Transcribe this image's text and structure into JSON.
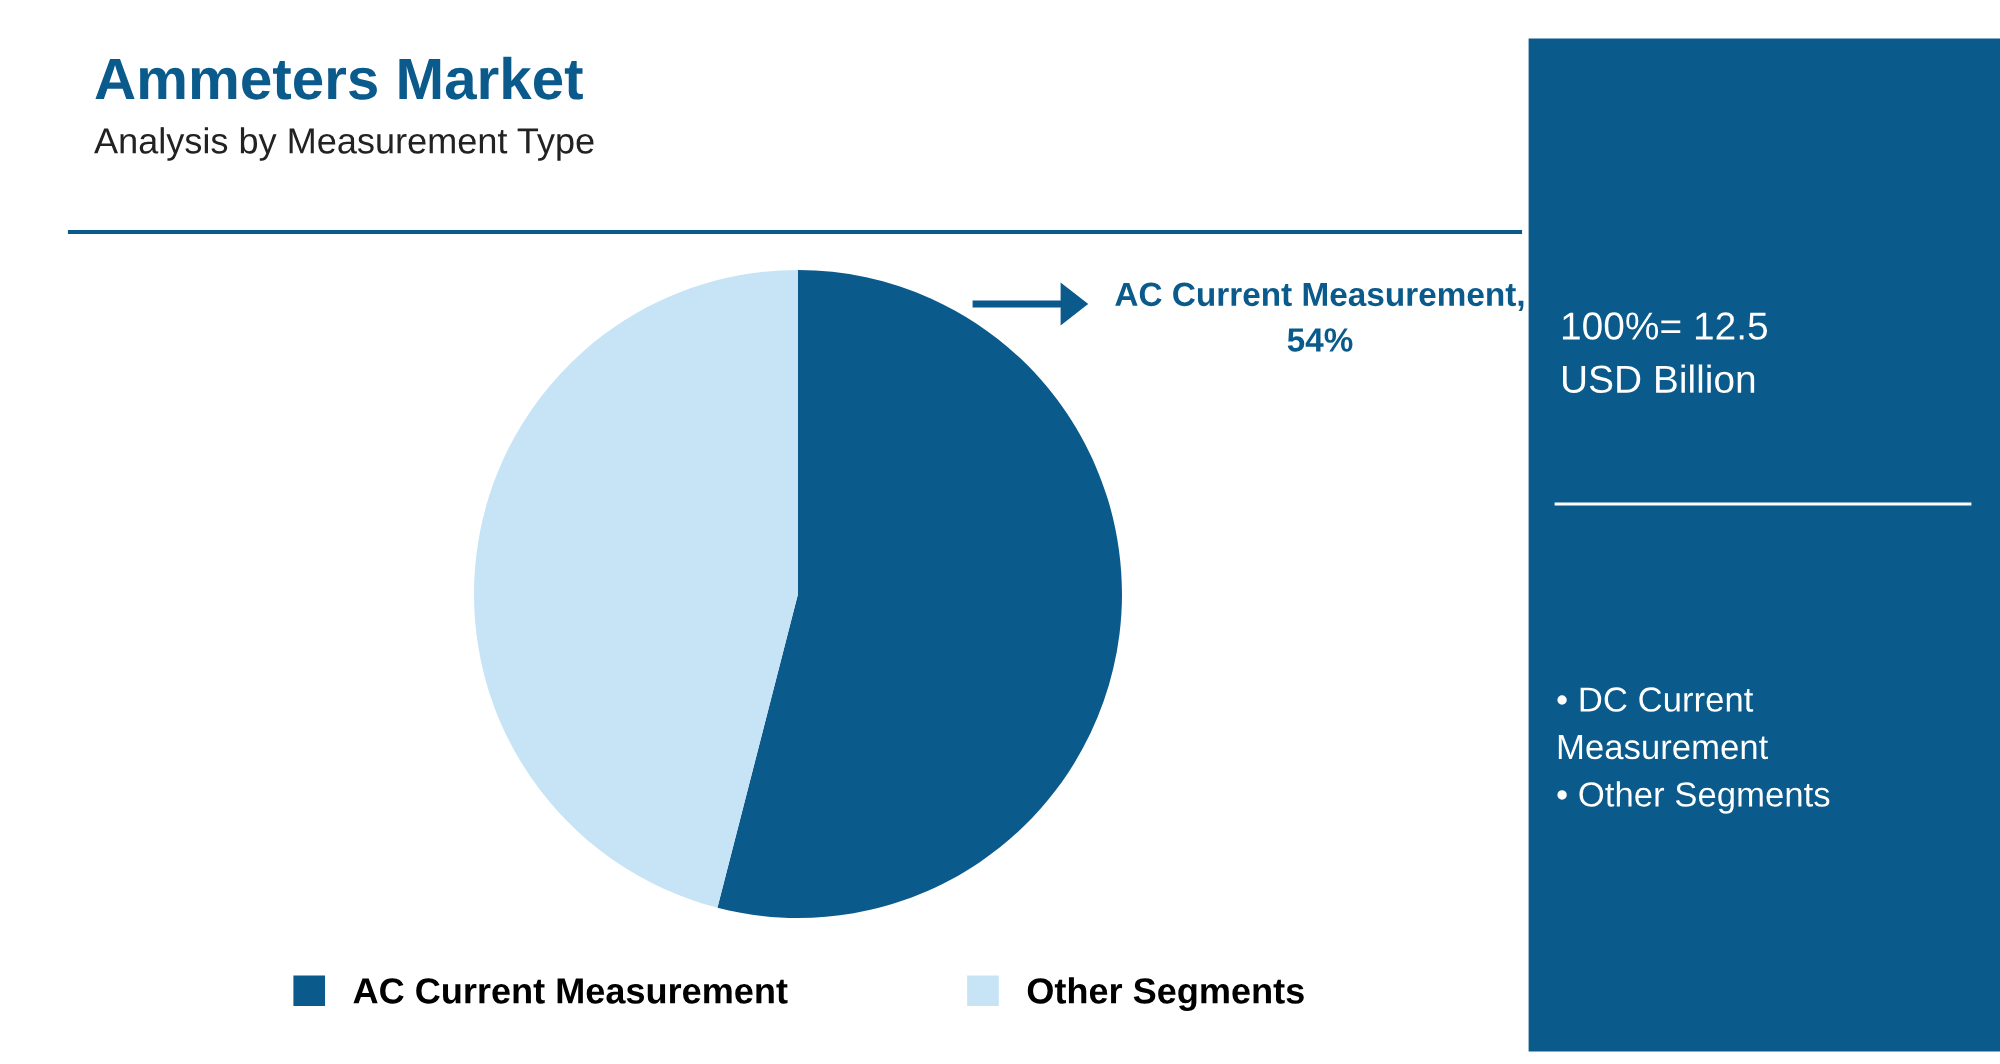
{
  "chart_data": {
    "type": "pie",
    "title": "Ammeters Market",
    "subtitle": "Analysis by Measurement Type",
    "categories": [
      "AC Current Measurement",
      "Other Segments"
    ],
    "values": [
      54,
      46
    ],
    "colors": [
      "#0b5a8c",
      "#c6e4f5"
    ],
    "value_labels": [
      "AC Current Measurement,\n54%",
      null
    ],
    "legend": "bottom",
    "annotations": [
      "100%= 12.5\nUSD Billion",
      "• DC Current\nMeasurement\n• Other Segments"
    ]
  }
}
